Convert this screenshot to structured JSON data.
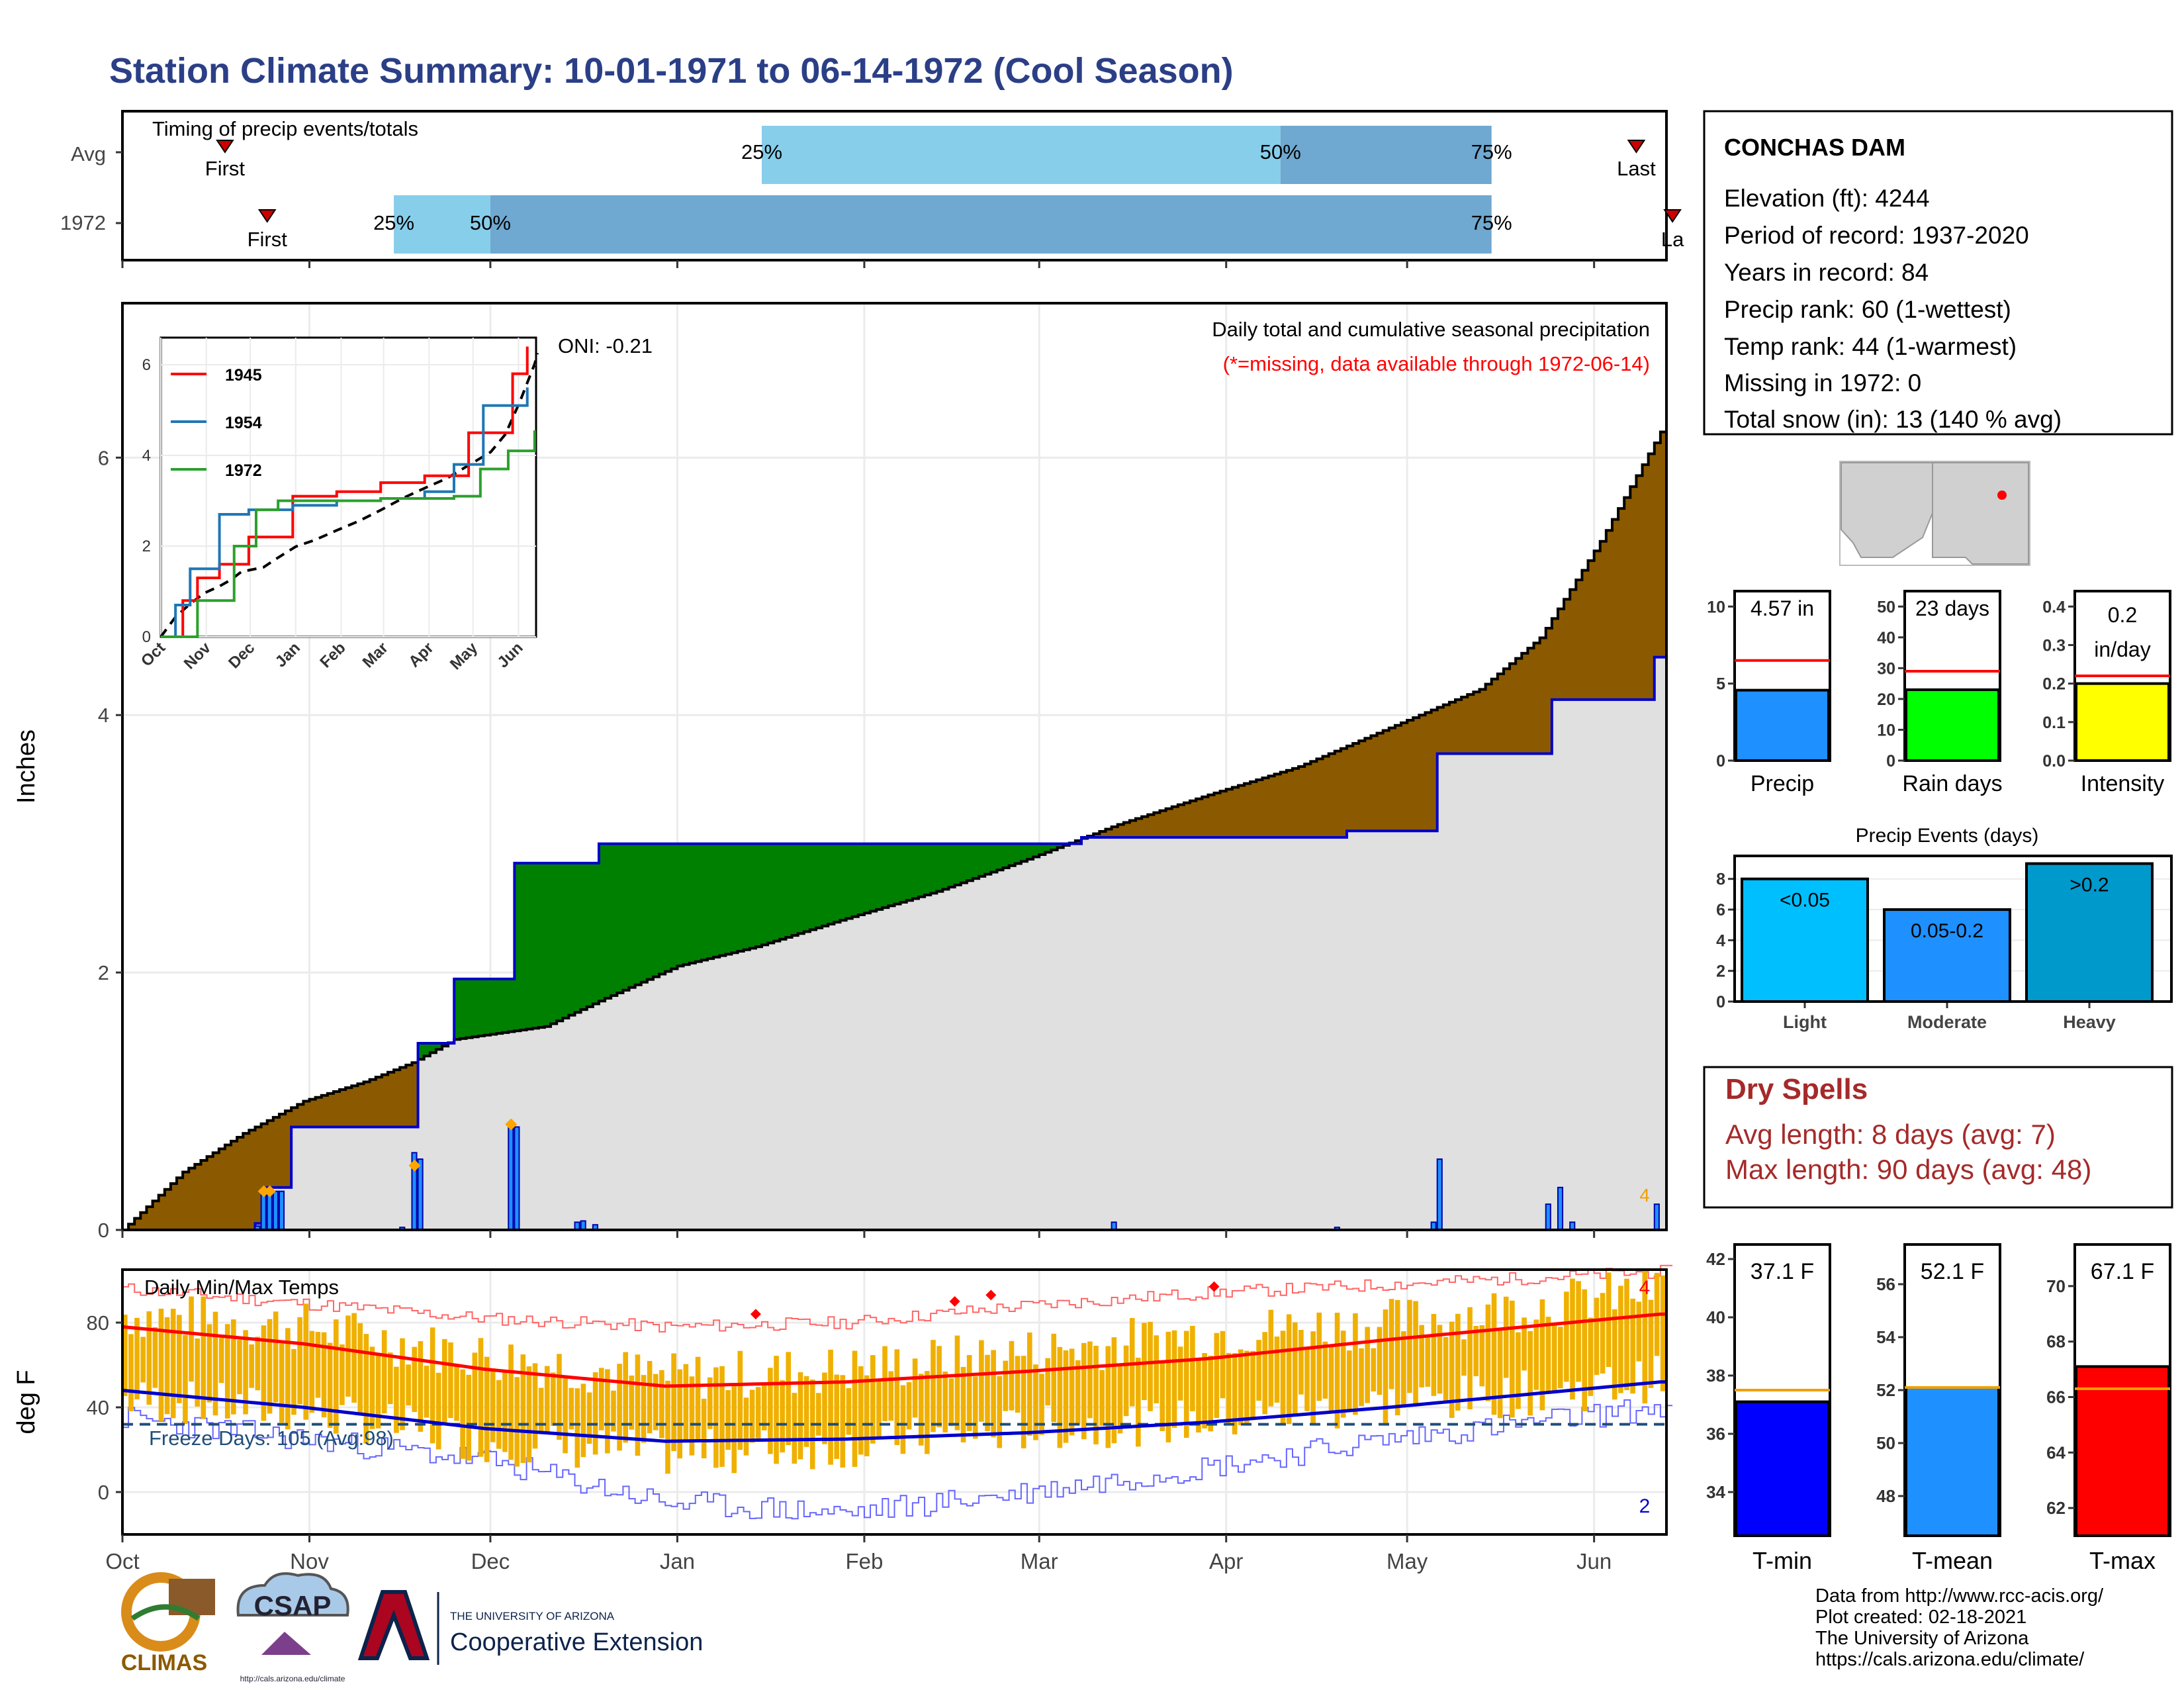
{
  "title": "Station Climate Summary: 10-01-1971 to 06-14-1972 (Cool Season)",
  "colors": {
    "title": "#2b3f87",
    "early_fill": "#8b5a00",
    "wet_fill": "#008000",
    "clim_fill": "#e0e0e0",
    "avg_line": "#000000",
    "cur_line": "#0000cc",
    "quartile_light": "#87ceeb",
    "quartile_dark": "#6fa8d0",
    "dry_spell": "#a52a2a",
    "tmax": "#ff0000",
    "tmin": "#0000ff",
    "range": "#f0b000",
    "freeze": "#1f4e79",
    "precip_bar": "#1e90ff",
    "raindays_bar": "#00ff00",
    "intensity_bar": "#ffff00",
    "events_light": "#00bfff",
    "events_moderate": "#1e90ff",
    "events_heavy": "#0099cc"
  },
  "timing": {
    "label": "Timing of precip events/totals",
    "rows": [
      {
        "name": "Avg",
        "first_label": "First",
        "last_label": "Last",
        "first_date": "1971-10-18",
        "last_date": "1972-06-08",
        "q25_label": "25%",
        "q50_label": "50%",
        "q75_label": "75%",
        "q25_date": "1972-01-15",
        "q50_date": "1972-04-10",
        "q75_date": "1972-05-15"
      },
      {
        "name": "1972",
        "first_label": "First",
        "last_label": "La",
        "first_date": "1971-10-25",
        "last_date": "1972-06-14",
        "q25_label": "25%",
        "q50_label": "50%",
        "q75_label": "75%",
        "q25_date": "1971-11-15",
        "q50_date": "1971-12-01",
        "q75_date": "1972-05-15"
      }
    ]
  },
  "month_labels": [
    "Oct",
    "Nov",
    "Dec",
    "Jan",
    "Feb",
    "Mar",
    "Apr",
    "May",
    "Jun"
  ],
  "precip_chart": {
    "ylabel": "Inches",
    "ytick_labels": [
      "0",
      "2",
      "4",
      "6"
    ],
    "oni": "ONI: -0.21",
    "subtitle": "Daily total and cumulative seasonal precipitation",
    "note": "(*=missing, data available through 1972-06-14)",
    "end_snow_value": "4"
  },
  "chart_data": [
    {
      "type": "area",
      "name": "cumulative-precip",
      "x_start": "1971-10-01",
      "avg_cumulative": [
        [
          0,
          0
        ],
        [
          10,
          0.45
        ],
        [
          20,
          0.75
        ],
        [
          30,
          1.0
        ],
        [
          40,
          1.15
        ],
        [
          48,
          1.3
        ],
        [
          55,
          1.48
        ],
        [
          61,
          1.52
        ],
        [
          70,
          1.58
        ],
        [
          80,
          1.8
        ],
        [
          92,
          2.05
        ],
        [
          105,
          2.2
        ],
        [
          120,
          2.42
        ],
        [
          135,
          2.63
        ],
        [
          150,
          2.88
        ],
        [
          165,
          3.15
        ],
        [
          180,
          3.38
        ],
        [
          195,
          3.6
        ],
        [
          210,
          3.9
        ],
        [
          225,
          4.2
        ],
        [
          235,
          4.6
        ],
        [
          245,
          5.35
        ],
        [
          255,
          6.2
        ],
        [
          257,
          6.45
        ]
      ],
      "cur_cumulative": [
        [
          0,
          0
        ],
        [
          22,
          0.05
        ],
        [
          24,
          0.33
        ],
        [
          28,
          0.8
        ],
        [
          48,
          0.8
        ],
        [
          49,
          1.45
        ],
        [
          55,
          1.95
        ],
        [
          64,
          1.95
        ],
        [
          65,
          2.85
        ],
        [
          78,
          2.85
        ],
        [
          79,
          3.0
        ],
        [
          133,
          3.0
        ],
        [
          158,
          3.0
        ],
        [
          159,
          3.05
        ],
        [
          202,
          3.05
        ],
        [
          203,
          3.1
        ],
        [
          217,
          3.1
        ],
        [
          218,
          3.7
        ],
        [
          236,
          3.7
        ],
        [
          237,
          4.12
        ],
        [
          252,
          4.12
        ],
        [
          254,
          4.45
        ],
        [
          257,
          4.55
        ]
      ],
      "daily_precip": [
        [
          22,
          0.03
        ],
        [
          23,
          0.3
        ],
        [
          24,
          0.3
        ],
        [
          25,
          0.3
        ],
        [
          26,
          0.3
        ],
        [
          46,
          0.02
        ],
        [
          48,
          0.6
        ],
        [
          49,
          0.55
        ],
        [
          64,
          0.8
        ],
        [
          65,
          0.8
        ],
        [
          75,
          0.06
        ],
        [
          76,
          0.07
        ],
        [
          78,
          0.04
        ],
        [
          164,
          0.06
        ],
        [
          201,
          0.02
        ],
        [
          217,
          0.06
        ],
        [
          218,
          0.55
        ],
        [
          236,
          0.2
        ],
        [
          238,
          0.33
        ],
        [
          240,
          0.06
        ],
        [
          254,
          0.2
        ]
      ]
    },
    {
      "type": "line",
      "name": "inset-cumulative-comparison",
      "series": [
        {
          "name": "1945",
          "values": [
            [
              0,
              0
            ],
            [
              15,
              0.8
            ],
            [
              25,
              1.3
            ],
            [
              40,
              1.6
            ],
            [
              60,
              2.2
            ],
            [
              90,
              3.1
            ],
            [
              120,
              3.2
            ],
            [
              150,
              3.4
            ],
            [
              180,
              3.55
            ],
            [
              210,
              4.5
            ],
            [
              240,
              5.8
            ],
            [
              250,
              6.4
            ]
          ]
        },
        {
          "name": "1954",
          "values": [
            [
              0,
              0
            ],
            [
              10,
              0.7
            ],
            [
              20,
              1.5
            ],
            [
              40,
              2.7
            ],
            [
              60,
              2.8
            ],
            [
              90,
              2.9
            ],
            [
              120,
              3.0
            ],
            [
              150,
              3.05
            ],
            [
              180,
              3.2
            ],
            [
              200,
              3.8
            ],
            [
              220,
              5.1
            ],
            [
              250,
              5.5
            ]
          ]
        },
        {
          "name": "1972",
          "values": [
            [
              0,
              0
            ],
            [
              25,
              0.8
            ],
            [
              50,
              2.0
            ],
            [
              65,
              2.8
            ],
            [
              80,
              3.0
            ],
            [
              110,
              3.0
            ],
            [
              150,
              3.05
            ],
            [
              200,
              3.1
            ],
            [
              218,
              3.7
            ],
            [
              237,
              4.1
            ],
            [
              255,
              4.55
            ]
          ]
        }
      ],
      "ytick_labels": [
        "0",
        "2",
        "4",
        "6"
      ]
    },
    {
      "type": "bar",
      "name": "precip-total",
      "categories": [
        "Precip"
      ],
      "values": [
        4.57
      ],
      "avg": 6.5,
      "label": "4.57 in",
      "ylim": [
        0,
        11
      ],
      "ytick_labels": [
        "0",
        "5",
        "10"
      ]
    },
    {
      "type": "bar",
      "name": "rain-days",
      "categories": [
        "Rain days"
      ],
      "values": [
        23
      ],
      "avg": 29,
      "label": "23 days",
      "ylim": [
        0,
        55
      ],
      "ytick_labels": [
        "0",
        "10",
        "20",
        "30",
        "40",
        "50"
      ]
    },
    {
      "type": "bar",
      "name": "intensity",
      "categories": [
        "Intensity"
      ],
      "values": [
        0.2
      ],
      "avg": 0.22,
      "label_line1": "0.2",
      "label_line2": "in/day",
      "ylim": [
        0,
        0.44
      ],
      "ytick_labels": [
        "0.0",
        "0.1",
        "0.2",
        "0.3",
        "0.4"
      ]
    },
    {
      "type": "bar",
      "name": "precip-events",
      "title": "Precip Events (days)",
      "categories": [
        "Light",
        "Moderate",
        "Heavy"
      ],
      "values": [
        8,
        6,
        9
      ],
      "bar_labels": [
        "<0.05",
        "0.05-0.2",
        ">0.2"
      ],
      "ylim": [
        0,
        9.5
      ],
      "ytick_labels": [
        "0",
        "2",
        "4",
        "6",
        "8"
      ]
    },
    {
      "type": "line",
      "name": "daily-temps",
      "title": "Daily Min/Max Temps",
      "ylabel": "deg F",
      "ytick_labels": [
        "0",
        "40",
        "80"
      ],
      "ylim": [
        -20,
        105
      ],
      "freeze_label": "Freeze Days: 105 (Avg:98)",
      "freeze_threshold": 32,
      "tmax_avg": [
        [
          0,
          78
        ],
        [
          30,
          70
        ],
        [
          60,
          58
        ],
        [
          90,
          50
        ],
        [
          120,
          52
        ],
        [
          150,
          57
        ],
        [
          180,
          63
        ],
        [
          210,
          72
        ],
        [
          240,
          80
        ],
        [
          255,
          84
        ]
      ],
      "tmin_avg": [
        [
          0,
          48
        ],
        [
          30,
          40
        ],
        [
          60,
          30
        ],
        [
          90,
          24
        ],
        [
          120,
          25
        ],
        [
          150,
          28
        ],
        [
          180,
          33
        ],
        [
          210,
          40
        ],
        [
          240,
          48
        ],
        [
          255,
          52
        ]
      ],
      "tmax_record": [
        [
          0,
          96
        ],
        [
          60,
          82
        ],
        [
          90,
          78
        ],
        [
          120,
          80
        ],
        [
          150,
          88
        ],
        [
          180,
          94
        ],
        [
          210,
          98
        ],
        [
          255,
          104
        ]
      ],
      "tmin_record": [
        [
          0,
          35
        ],
        [
          60,
          15
        ],
        [
          90,
          -5
        ],
        [
          120,
          -10
        ],
        [
          150,
          0
        ],
        [
          180,
          12
        ],
        [
          210,
          25
        ],
        [
          255,
          40
        ]
      ],
      "tmax_obs_base": [
        [
          0,
          84
        ],
        [
          30,
          78
        ],
        [
          60,
          64
        ],
        [
          90,
          54
        ],
        [
          120,
          58
        ],
        [
          150,
          66
        ],
        [
          180,
          75
        ],
        [
          210,
          80
        ],
        [
          240,
          90
        ],
        [
          255,
          96
        ]
      ],
      "tmin_obs_base": [
        [
          0,
          44
        ],
        [
          30,
          38
        ],
        [
          60,
          24
        ],
        [
          90,
          18
        ],
        [
          120,
          22
        ],
        [
          150,
          30
        ],
        [
          180,
          34
        ],
        [
          210,
          42
        ],
        [
          240,
          48
        ],
        [
          255,
          54
        ]
      ],
      "end_max_label": "4",
      "end_min_label": "2"
    },
    {
      "type": "bar",
      "name": "t-min",
      "categories": [
        "T-min"
      ],
      "values": [
        37.1
      ],
      "avg": 37.5,
      "label": "37.1 F",
      "ylim": [
        32.5,
        42.5
      ],
      "ytick_labels": [
        "34",
        "36",
        "38",
        "40",
        "42"
      ]
    },
    {
      "type": "bar",
      "name": "t-mean",
      "categories": [
        "T-mean"
      ],
      "values": [
        52.1
      ],
      "avg": 52.1,
      "label": "52.1 F",
      "ylim": [
        46.5,
        57.5
      ],
      "ytick_labels": [
        "48",
        "50",
        "52",
        "54",
        "56"
      ]
    },
    {
      "type": "bar",
      "name": "t-max",
      "categories": [
        "T-max"
      ],
      "values": [
        67.1
      ],
      "avg": 66.3,
      "label": "67.1 F",
      "ylim": [
        61,
        71.5
      ],
      "ytick_labels": [
        "62",
        "64",
        "66",
        "68",
        "70"
      ]
    }
  ],
  "station": {
    "name": "CONCHAS DAM",
    "elevation": "Elevation (ft): 4244",
    "period": "Period of record: 1937-2020",
    "years": "Years in record: 84",
    "precip_rank": "Precip rank: 60 (1-wettest)",
    "temp_rank": "Temp rank: 44 (1-warmest)",
    "missing": "Missing in 1972: 0",
    "snow": "Total snow (in): 13 (140 % avg)"
  },
  "dry_spells": {
    "title": "Dry Spells",
    "avg_length": "Avg length: 8 days (avg: 7)",
    "max_length": "Max length: 90 days (avg: 48)"
  },
  "footer": {
    "line1": "Data from http://www.rcc-acis.org/",
    "line2": "Plot created: 02-18-2021",
    "line3": "The University of Arizona",
    "line4": "https://cals.arizona.edu/climate/"
  },
  "logos": {
    "climas": "CLIMAS",
    "csap": "CSAP",
    "csap_url": "http://cals.arizona.edu/climate",
    "ua_small": "THE UNIVERSITY OF ARIZONA",
    "ua_big": "Cooperative Extension"
  }
}
